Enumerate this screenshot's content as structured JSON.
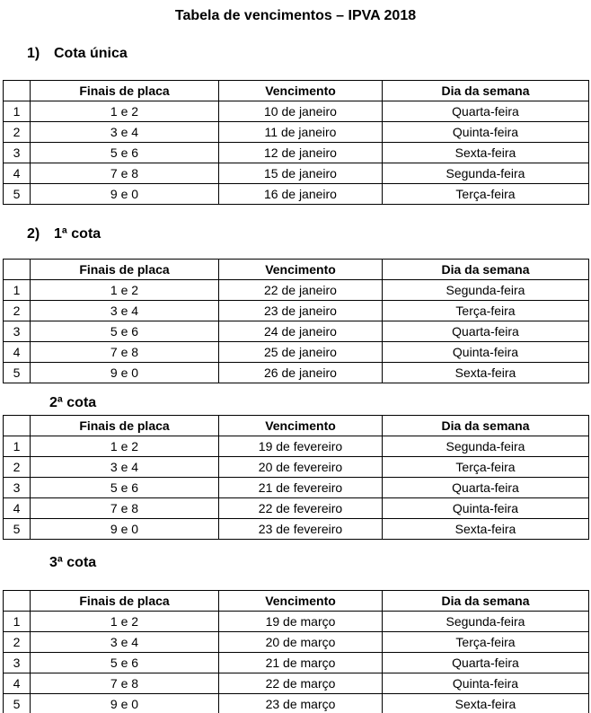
{
  "page": {
    "title": "Tabela de vencimentos – IPVA 2018"
  },
  "table_columns": {
    "index": "",
    "plates": "Finais de placa",
    "due_date": "Vencimento",
    "weekday": "Dia da semana"
  },
  "sections": [
    {
      "number": "1)",
      "title": "Cota única",
      "rows": [
        [
          "1",
          "1 e 2",
          "10 de janeiro",
          "Quarta-feira"
        ],
        [
          "2",
          "3 e 4",
          "11 de janeiro",
          "Quinta-feira"
        ],
        [
          "3",
          "5 e 6",
          "12 de janeiro",
          "Sexta-feira"
        ],
        [
          "4",
          "7 e 8",
          "15 de janeiro",
          "Segunda-feira"
        ],
        [
          "5",
          "9 e 0",
          "16 de janeiro",
          "Terça-feira"
        ]
      ]
    },
    {
      "number": "2)",
      "title": "1ª cota",
      "rows": [
        [
          "1",
          "1 e 2",
          "22 de janeiro",
          "Segunda-feira"
        ],
        [
          "2",
          "3 e 4",
          "23 de janeiro",
          "Terça-feira"
        ],
        [
          "3",
          "5 e 6",
          "24 de janeiro",
          "Quarta-feira"
        ],
        [
          "4",
          "7 e 8",
          "25 de janeiro",
          "Quinta-feira"
        ],
        [
          "5",
          "9 e 0",
          "26 de janeiro",
          "Sexta-feira"
        ]
      ]
    },
    {
      "number": "",
      "title": "2ª cota",
      "rows": [
        [
          "1",
          "1 e 2",
          "19 de fevereiro",
          "Segunda-feira"
        ],
        [
          "2",
          "3 e 4",
          "20 de fevereiro",
          "Terça-feira"
        ],
        [
          "3",
          "5 e 6",
          "21 de fevereiro",
          "Quarta-feira"
        ],
        [
          "4",
          "7 e 8",
          "22 de fevereiro",
          "Quinta-feira"
        ],
        [
          "5",
          "9 e 0",
          "23 de fevereiro",
          "Sexta-feira"
        ]
      ]
    },
    {
      "number": "",
      "title": "3ª cota",
      "rows": [
        [
          "1",
          "1 e 2",
          "19 de março",
          "Segunda-feira"
        ],
        [
          "2",
          "3 e 4",
          "20 de março",
          "Terça-feira"
        ],
        [
          "3",
          "5 e 6",
          "21 de março",
          "Quarta-feira"
        ],
        [
          "4",
          "7 e 8",
          "22 de março",
          "Quinta-feira"
        ],
        [
          "5",
          "9 e 0",
          "23 de março",
          "Sexta-feira"
        ]
      ]
    }
  ]
}
